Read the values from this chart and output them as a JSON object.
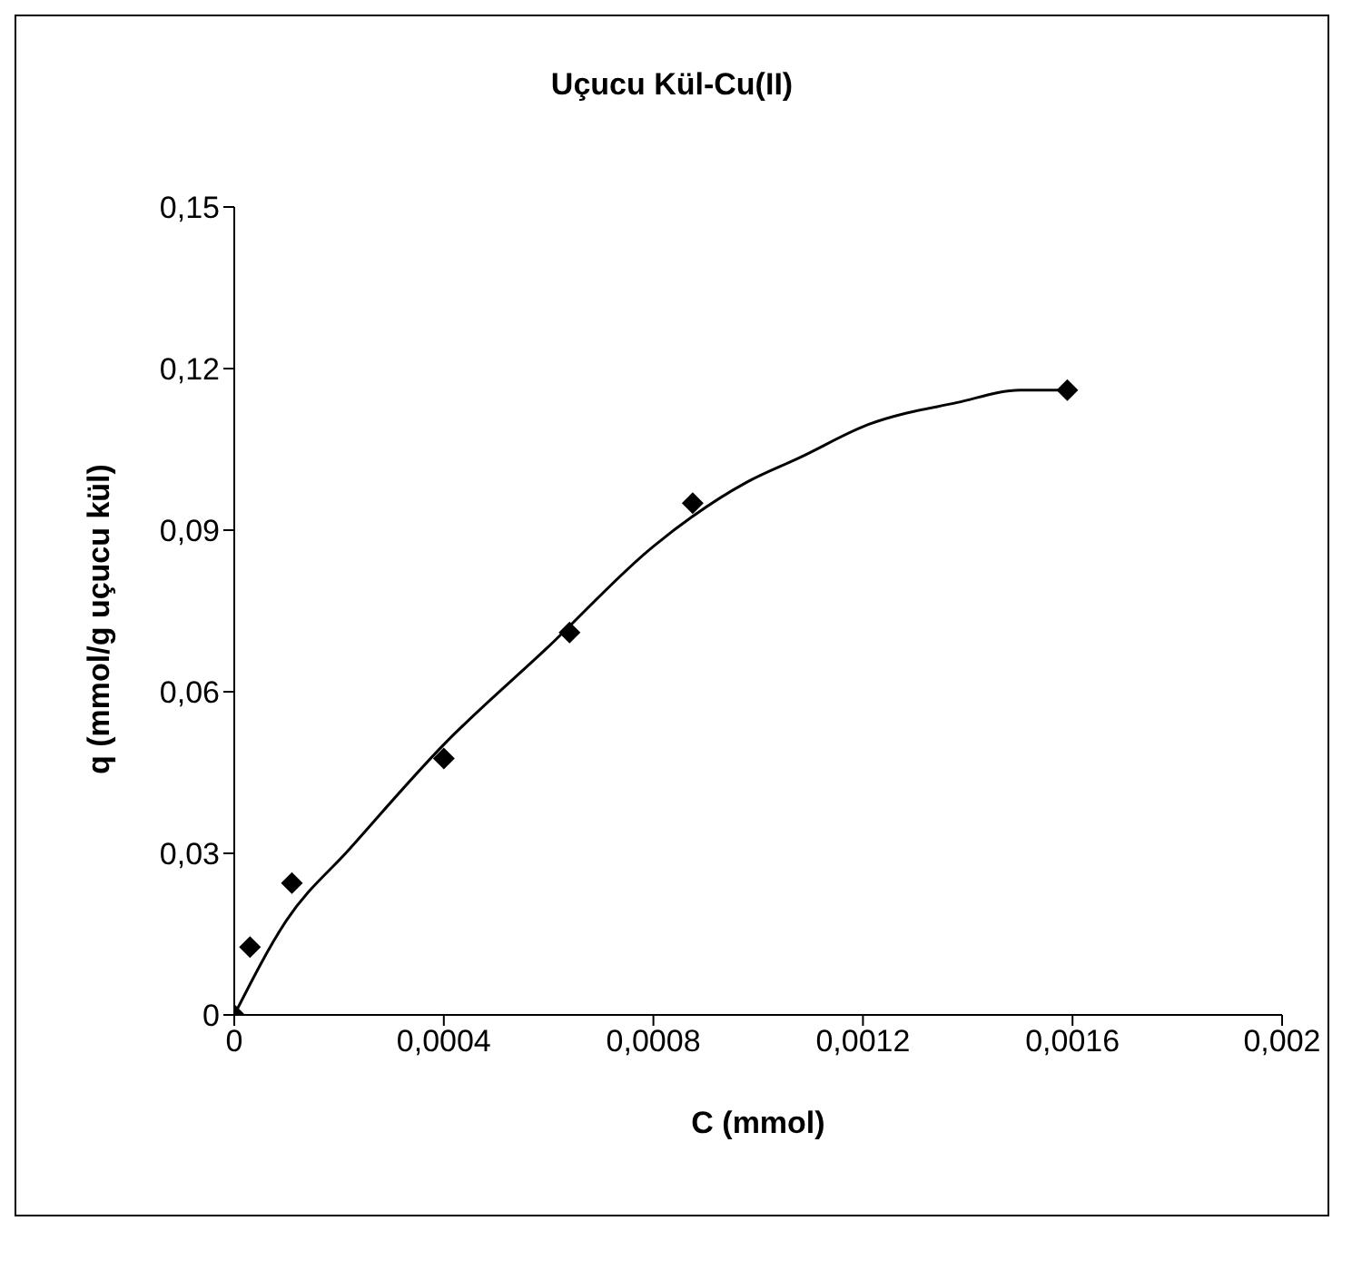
{
  "chart_data": {
    "type": "scatter",
    "title": "Uçucu Kül-Cu(II)",
    "xlabel": "C (mmol)",
    "ylabel": "q (mmol/g uçucu kül)",
    "x": [
      0,
      3e-05,
      0.00011,
      0.0004,
      0.00064,
      0.000875,
      0.00159
    ],
    "values": [
      0,
      0.0126,
      0.0245,
      0.0476,
      0.071,
      0.095,
      0.116
    ],
    "color": "#000000",
    "marker": "diamond",
    "series": [
      {
        "type": "line",
        "color": "#000000",
        "marker": "none",
        "line_style": "solid",
        "x": [
          0,
          0.0001,
          0.00022,
          0.0004,
          0.0006,
          0.0008,
          0.00098,
          0.00108,
          0.00121,
          0.00138,
          0.0015,
          0.00159
        ],
        "values": [
          0,
          0.0176,
          0.0308,
          0.0502,
          0.0684,
          0.087,
          0.099,
          0.1035,
          0.1096,
          0.1137,
          0.116,
          0.116
        ]
      }
    ],
    "xlim": [
      0,
      0.002
    ],
    "xticks": [
      {
        "value": 0,
        "label": "0"
      },
      {
        "value": 0.0004,
        "label": "0,0004"
      },
      {
        "value": 0.0008,
        "label": "0,0008"
      },
      {
        "value": 0.0012,
        "label": "0,0012"
      },
      {
        "value": 0.0016,
        "label": "0,0016"
      },
      {
        "value": 0.002,
        "label": "0,002"
      }
    ],
    "ylim": [
      0,
      0.15
    ],
    "yticks": [
      {
        "value": 0,
        "label": "0"
      },
      {
        "value": 0.03,
        "label": "0,03"
      },
      {
        "value": 0.06,
        "label": "0,06"
      },
      {
        "value": 0.09,
        "label": "0,09"
      },
      {
        "value": 0.12,
        "label": "0,12"
      },
      {
        "value": 0.15,
        "label": "0,15"
      }
    ],
    "grid": false,
    "legend": false
  }
}
